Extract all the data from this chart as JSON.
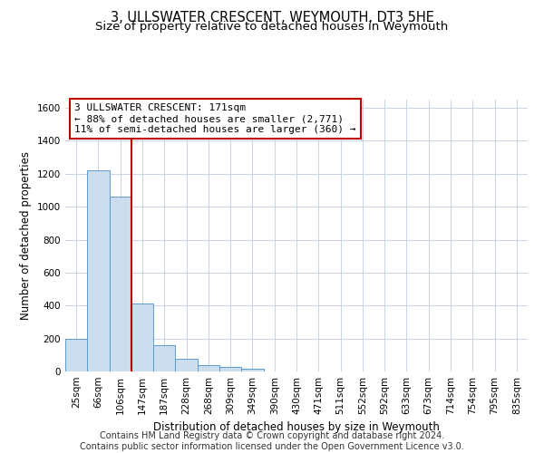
{
  "title": "3, ULLSWATER CRESCENT, WEYMOUTH, DT3 5HE",
  "subtitle": "Size of property relative to detached houses in Weymouth",
  "xlabel": "Distribution of detached houses by size in Weymouth",
  "ylabel": "Number of detached properties",
  "categories": [
    "25sqm",
    "66sqm",
    "106sqm",
    "147sqm",
    "187sqm",
    "228sqm",
    "268sqm",
    "309sqm",
    "349sqm",
    "390sqm",
    "430sqm",
    "471sqm",
    "511sqm",
    "552sqm",
    "592sqm",
    "633sqm",
    "673sqm",
    "714sqm",
    "754sqm",
    "795sqm",
    "835sqm"
  ],
  "values": [
    200,
    1220,
    1060,
    410,
    160,
    75,
    40,
    25,
    15,
    0,
    0,
    0,
    0,
    0,
    0,
    0,
    0,
    0,
    0,
    0,
    0
  ],
  "bar_color": "#ccdded",
  "bar_edge_color": "#5b9bd5",
  "vline_color": "#c00000",
  "vline_x": 2.5,
  "annotation_text": "3 ULLSWATER CRESCENT: 171sqm\n← 88% of detached houses are smaller (2,771)\n11% of semi-detached houses are larger (360) →",
  "annotation_box_color": "#c00000",
  "ylim": [
    0,
    1650
  ],
  "yticks": [
    0,
    200,
    400,
    600,
    800,
    1000,
    1200,
    1400,
    1600
  ],
  "background_color": "#ffffff",
  "footer": "Contains HM Land Registry data © Crown copyright and database right 2024.\nContains public sector information licensed under the Open Government Licence v3.0.",
  "grid_color": "#c8d4e4",
  "title_fontsize": 10.5,
  "subtitle_fontsize": 9.5,
  "annotation_fontsize": 8,
  "tick_fontsize": 7.5,
  "xlabel_fontsize": 8.5,
  "ylabel_fontsize": 8.5,
  "footer_fontsize": 7
}
